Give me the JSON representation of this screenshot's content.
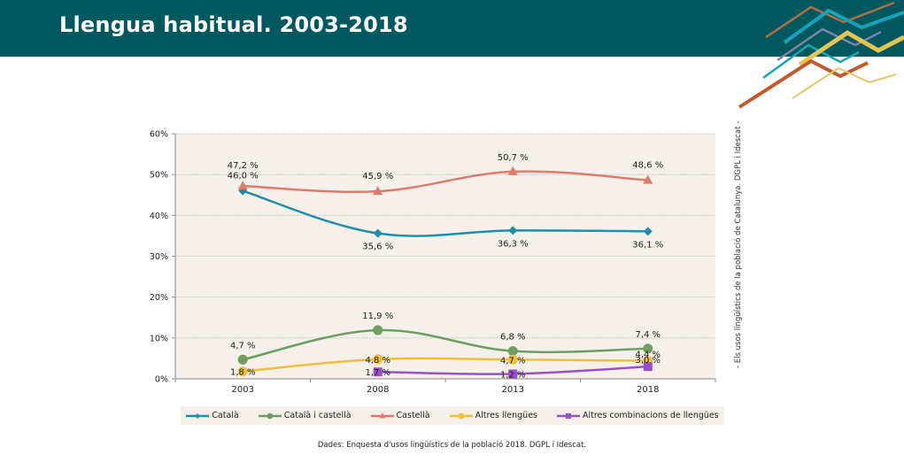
{
  "header": {
    "title": "Llengua habitual. 2003-2018",
    "background": "#02585f"
  },
  "side_note": "- Els usos lingüístics de la població de Catalunya. DGPL i Idescat -",
  "source": "Dades: Enquesta d'usos lingüístics de la població 2018. DGPL i Idescat.",
  "chart_data": {
    "type": "line",
    "title": "",
    "xlabel": "",
    "ylabel": "",
    "categories": [
      "2003",
      "2008",
      "2013",
      "2018"
    ],
    "ylim": [
      0,
      60
    ],
    "yticks": [
      0,
      10,
      20,
      30,
      40,
      50,
      60
    ],
    "ytick_labels": [
      "0%",
      "10%",
      "20%",
      "30%",
      "40%",
      "50%",
      "60%"
    ],
    "grid": true,
    "legend_position": "bottom",
    "plot_background": "#f5f0ea",
    "series": [
      {
        "name": "Català",
        "color": "#1f8ea8",
        "marker": "diamond",
        "values": [
          46.0,
          35.6,
          36.3,
          36.1
        ],
        "labels": [
          "46,0 %",
          "35,6 %",
          "36,3 %",
          "36,1 %"
        ]
      },
      {
        "name": "Català i castellà",
        "color": "#6e9e5e",
        "marker": "circle",
        "values": [
          4.7,
          11.9,
          6.8,
          7.4
        ],
        "labels": [
          "4,7 %",
          "11,9 %",
          "6,8 %",
          "7,4 %"
        ]
      },
      {
        "name": "Castellà",
        "color": "#e07b6a",
        "marker": "triangle",
        "values": [
          47.2,
          45.9,
          50.7,
          48.6
        ],
        "labels": [
          "47,2 %",
          "45,9 %",
          "50,7 %",
          "48,6 %"
        ]
      },
      {
        "name": "Altres llengües",
        "color": "#f0bf3a",
        "marker": "circle",
        "values": [
          1.8,
          4.8,
          4.7,
          4.4
        ],
        "labels": [
          "1,8 %",
          "4,8 %",
          "4,7 %",
          "4,4 %"
        ]
      },
      {
        "name": "Altres combinacions de llengües",
        "color": "#9a4fc8",
        "marker": "square",
        "values": [
          null,
          1.7,
          1.2,
          3.0
        ],
        "labels": [
          null,
          "1,7 %",
          "1,2 %",
          "3,0 %"
        ]
      }
    ]
  }
}
